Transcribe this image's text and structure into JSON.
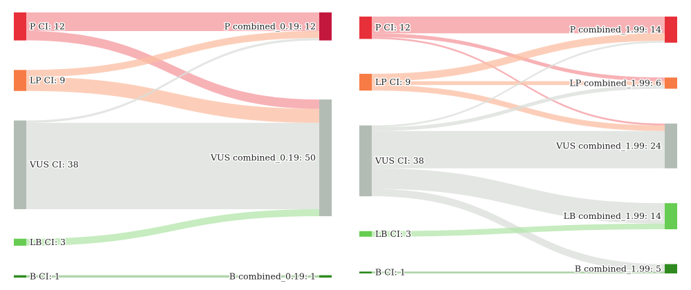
{
  "chart_data": [
    {
      "type": "sankey",
      "nodes_left": [
        {
          "id": "P",
          "label": "P CI: 12",
          "value": 12,
          "color": "#e8303a"
        },
        {
          "id": "LP",
          "label": "LP CI: 9",
          "value": 9,
          "color": "#f77b45"
        },
        {
          "id": "VUS",
          "label": "VUS CI: 38",
          "value": 38,
          "color": "#b2bcb4"
        },
        {
          "id": "LB",
          "label": "LB CI: 3",
          "value": 3,
          "color": "#66cc52"
        },
        {
          "id": "B",
          "label": "B CI: 1",
          "value": 1,
          "color": "#2e8a1f"
        }
      ],
      "nodes_right": [
        {
          "id": "P",
          "label": "P combined_0.19: 12",
          "value": 12,
          "color": "#c4173e"
        },
        {
          "id": "VUS",
          "label": "VUS combined_0.19: 50",
          "value": 50,
          "color": "#b2bcb4"
        },
        {
          "id": "B",
          "label": "B combined_0.19: 1",
          "value": 1,
          "color": "#2e8a1f"
        }
      ],
      "links": [
        {
          "source": "P",
          "target": "P",
          "value": 8
        },
        {
          "source": "P",
          "target": "VUS",
          "value": 4
        },
        {
          "source": "LP",
          "target": "P",
          "value": 3
        },
        {
          "source": "LP",
          "target": "VUS",
          "value": 6
        },
        {
          "source": "VUS",
          "target": "P",
          "value": 1
        },
        {
          "source": "VUS",
          "target": "VUS",
          "value": 37
        },
        {
          "source": "LB",
          "target": "VUS",
          "value": 3
        },
        {
          "source": "B",
          "target": "B",
          "value": 1
        }
      ]
    },
    {
      "type": "sankey",
      "nodes_left": [
        {
          "id": "P",
          "label": "P CI: 12",
          "value": 12,
          "color": "#e8303a"
        },
        {
          "id": "LP",
          "label": "LP CI: 9",
          "value": 9,
          "color": "#f77b45"
        },
        {
          "id": "VUS",
          "label": "VUS CI: 38",
          "value": 38,
          "color": "#b2bcb4"
        },
        {
          "id": "LB",
          "label": "LB CI: 3",
          "value": 3,
          "color": "#66cc52"
        },
        {
          "id": "B",
          "label": "B CI: 1",
          "value": 1,
          "color": "#2e8a1f"
        }
      ],
      "nodes_right": [
        {
          "id": "P",
          "label": "P combined_1.99: 14",
          "value": 14,
          "color": "#e8303a"
        },
        {
          "id": "LP",
          "label": "LP combined_1.99: 6",
          "value": 6,
          "color": "#f77b45"
        },
        {
          "id": "VUS",
          "label": "VUS combined_1.99: 24",
          "value": 24,
          "color": "#b2bcb4"
        },
        {
          "id": "LB",
          "label": "LB combined_1.99: 14",
          "value": 14,
          "color": "#66cc52"
        },
        {
          "id": "B",
          "label": "B combined_1.99: 5",
          "value": 5,
          "color": "#2e8a1f"
        }
      ],
      "links": [
        {
          "source": "P",
          "target": "P",
          "value": 9
        },
        {
          "source": "P",
          "target": "LP",
          "value": 2
        },
        {
          "source": "P",
          "target": "VUS",
          "value": 1
        },
        {
          "source": "LP",
          "target": "P",
          "value": 4
        },
        {
          "source": "LP",
          "target": "LP",
          "value": 2
        },
        {
          "source": "LP",
          "target": "VUS",
          "value": 3
        },
        {
          "source": "VUS",
          "target": "P",
          "value": 1
        },
        {
          "source": "VUS",
          "target": "LP",
          "value": 2
        },
        {
          "source": "VUS",
          "target": "VUS",
          "value": 20
        },
        {
          "source": "VUS",
          "target": "LB",
          "value": 11
        },
        {
          "source": "VUS",
          "target": "B",
          "value": 4
        },
        {
          "source": "LB",
          "target": "LB",
          "value": 3
        },
        {
          "source": "B",
          "target": "B",
          "value": 1
        }
      ]
    }
  ]
}
